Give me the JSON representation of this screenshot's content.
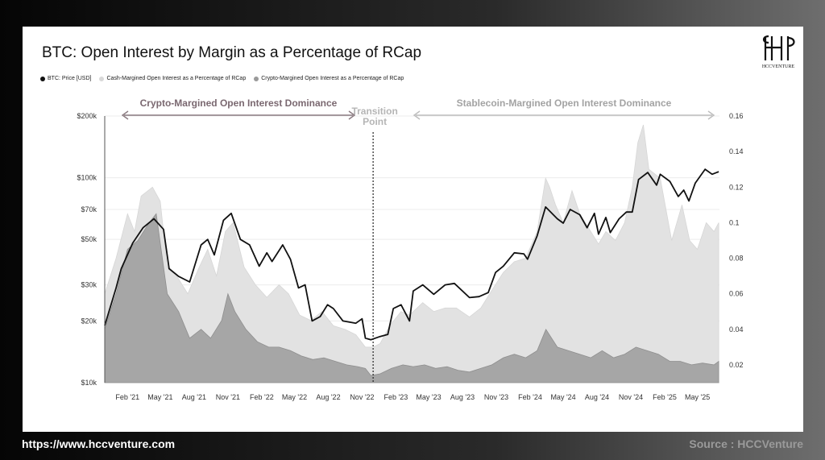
{
  "footer": {
    "website": "https://www.hccventure.com",
    "source": "Source : HCCVenture"
  },
  "logo": {
    "text": "HCCVENTURE"
  },
  "colors": {
    "price": "#111111",
    "cash": "#e2e2e2",
    "crypto": "#a6a6a6",
    "arrow_left": "#8a7a80",
    "arrow_right": "#bdbdbd"
  },
  "chart_data": {
    "type": "area",
    "title": "BTC: Open Interest by Margin as a Percentage of RCap",
    "legend": [
      "BTC: Price [USD]",
      "Cash-Margined Open Interest as a Percentage of RCap",
      "Crypto-Margined Open Interest as a Percentage of RCap"
    ],
    "annotations": {
      "left": "Crypto-Margined Open Interest Dominance",
      "transition": [
        "Transition",
        "Point"
      ],
      "right": "Stablecoin-Margined Open Interest Dominance"
    },
    "x_ticks": [
      "Feb '21",
      "May '21",
      "Aug '21",
      "Nov '21",
      "Feb '22",
      "May '22",
      "Aug '22",
      "Nov '22",
      "Feb '23",
      "May '23",
      "Aug '23",
      "Nov '23",
      "Feb '24",
      "May '24",
      "Aug '24",
      "Nov '24",
      "Feb '25",
      "May '25"
    ],
    "x_range": [
      "2020-12-01",
      "2025-06-30"
    ],
    "y_left": {
      "scale": "log",
      "range": [
        10000,
        200000
      ],
      "ticks": [
        "$10k",
        "$20k",
        "$30k",
        "$50k",
        "$70k",
        "$100k",
        "$200k"
      ],
      "tick_values": [
        10000,
        20000,
        30000,
        50000,
        70000,
        100000,
        200000
      ]
    },
    "y_right": {
      "scale": "linear",
      "range": [
        0.01,
        0.16
      ],
      "ticks": [
        "0.02",
        "0.04",
        "0.06",
        "0.08",
        "0.1",
        "0.12",
        "0.14",
        "0.16"
      ],
      "tick_values": [
        0.02,
        0.04,
        0.06,
        0.08,
        0.1,
        0.12,
        0.14,
        0.16
      ]
    },
    "transition_date": "2022-12-01",
    "series": [
      {
        "name": "BTC: Price [USD]",
        "axis": "left",
        "x": [
          "2020-12-01",
          "2021-01-01",
          "2021-01-15",
          "2021-02-15",
          "2021-03-15",
          "2021-04-14",
          "2021-05-10",
          "2021-05-25",
          "2021-06-20",
          "2021-07-20",
          "2021-08-20",
          "2021-09-07",
          "2021-09-25",
          "2021-10-20",
          "2021-11-10",
          "2021-12-05",
          "2021-12-30",
          "2022-01-25",
          "2022-02-15",
          "2022-03-01",
          "2022-03-30",
          "2022-04-20",
          "2022-05-12",
          "2022-05-30",
          "2022-06-18",
          "2022-07-10",
          "2022-07-30",
          "2022-08-15",
          "2022-09-10",
          "2022-10-15",
          "2022-11-01",
          "2022-11-10",
          "2022-11-25",
          "2022-12-20",
          "2023-01-10",
          "2023-01-25",
          "2023-02-15",
          "2023-03-10",
          "2023-03-20",
          "2023-04-15",
          "2023-05-15",
          "2023-06-15",
          "2023-07-10",
          "2023-08-20",
          "2023-09-15",
          "2023-10-10",
          "2023-10-30",
          "2023-11-20",
          "2023-12-20",
          "2024-01-15",
          "2024-01-25",
          "2024-02-20",
          "2024-03-14",
          "2024-04-15",
          "2024-05-01",
          "2024-05-20",
          "2024-06-15",
          "2024-07-05",
          "2024-07-25",
          "2024-08-05",
          "2024-08-25",
          "2024-09-06",
          "2024-09-30",
          "2024-10-20",
          "2024-11-05",
          "2024-11-22",
          "2024-12-17",
          "2025-01-10",
          "2025-01-20",
          "2025-02-15",
          "2025-03-10",
          "2025-03-25",
          "2025-04-08",
          "2025-04-25",
          "2025-05-22",
          "2025-06-10",
          "2025-06-28"
        ],
        "values": [
          19000,
          29000,
          36000,
          48000,
          57000,
          63000,
          56000,
          36000,
          33000,
          31000,
          47000,
          50000,
          42000,
          62000,
          67000,
          50000,
          47000,
          37000,
          43000,
          39000,
          47000,
          40000,
          29000,
          30000,
          20000,
          21000,
          24000,
          23000,
          20000,
          19500,
          20500,
          16500,
          16200,
          16800,
          17200,
          23000,
          24000,
          20000,
          28000,
          30000,
          27000,
          30000,
          30500,
          26000,
          26300,
          27500,
          34500,
          37000,
          43000,
          42500,
          40000,
          52000,
          72000,
          63000,
          60000,
          70000,
          66000,
          57000,
          67000,
          53000,
          64000,
          54000,
          63000,
          68000,
          68000,
          98000,
          106000,
          92000,
          104000,
          96000,
          81000,
          87000,
          77000,
          94000,
          110000,
          104000,
          107000
        ]
      },
      {
        "name": "Cash-Margined Open Interest as a Percentage of RCap",
        "axis": "right",
        "x": [
          "2020-12-01",
          "2021-01-01",
          "2021-02-01",
          "2021-02-20",
          "2021-03-10",
          "2021-04-10",
          "2021-05-01",
          "2021-05-20",
          "2021-06-15",
          "2021-07-15",
          "2021-08-15",
          "2021-09-07",
          "2021-10-01",
          "2021-10-25",
          "2021-11-15",
          "2021-12-15",
          "2022-01-15",
          "2022-02-15",
          "2022-03-20",
          "2022-04-15",
          "2022-05-15",
          "2022-06-15",
          "2022-07-15",
          "2022-08-15",
          "2022-09-15",
          "2022-10-15",
          "2022-11-10",
          "2022-12-01",
          "2022-12-20",
          "2023-01-15",
          "2023-02-15",
          "2023-03-10",
          "2023-04-15",
          "2023-05-15",
          "2023-06-15",
          "2023-07-15",
          "2023-08-20",
          "2023-09-20",
          "2023-10-20",
          "2023-11-20",
          "2023-12-20",
          "2024-01-20",
          "2024-02-20",
          "2024-03-14",
          "2024-03-25",
          "2024-04-10",
          "2024-05-01",
          "2024-05-25",
          "2024-06-15",
          "2024-07-15",
          "2024-08-05",
          "2024-08-25",
          "2024-09-20",
          "2024-10-15",
          "2024-11-05",
          "2024-11-20",
          "2024-12-05",
          "2024-12-20",
          "2025-01-20",
          "2025-02-20",
          "2025-03-20",
          "2025-04-10",
          "2025-05-01",
          "2025-05-25",
          "2025-06-15",
          "2025-06-28"
        ],
        "values": [
          0.06,
          0.08,
          0.105,
          0.095,
          0.115,
          0.12,
          0.112,
          0.075,
          0.07,
          0.06,
          0.075,
          0.085,
          0.07,
          0.095,
          0.1,
          0.075,
          0.065,
          0.058,
          0.065,
          0.06,
          0.048,
          0.045,
          0.05,
          0.042,
          0.04,
          0.037,
          0.03,
          0.03,
          0.032,
          0.042,
          0.05,
          0.048,
          0.055,
          0.05,
          0.052,
          0.052,
          0.047,
          0.052,
          0.062,
          0.072,
          0.078,
          0.08,
          0.095,
          0.125,
          0.12,
          0.11,
          0.1,
          0.118,
          0.105,
          0.095,
          0.088,
          0.095,
          0.09,
          0.1,
          0.12,
          0.145,
          0.155,
          0.13,
          0.125,
          0.09,
          0.11,
          0.09,
          0.085,
          0.1,
          0.095,
          0.1
        ]
      },
      {
        "name": "Crypto-Margined Open Interest as a Percentage of RCap",
        "axis": "right",
        "x": [
          "2020-12-01",
          "2021-01-01",
          "2021-02-01",
          "2021-03-01",
          "2021-04-01",
          "2021-04-20",
          "2021-05-20",
          "2021-06-20",
          "2021-07-20",
          "2021-08-20",
          "2021-09-15",
          "2021-10-15",
          "2021-11-01",
          "2021-11-20",
          "2021-12-20",
          "2022-01-20",
          "2022-02-20",
          "2022-03-20",
          "2022-04-20",
          "2022-05-20",
          "2022-06-20",
          "2022-07-20",
          "2022-08-20",
          "2022-09-20",
          "2022-10-20",
          "2022-11-10",
          "2022-11-25",
          "2022-12-20",
          "2023-01-20",
          "2023-02-20",
          "2023-03-20",
          "2023-04-20",
          "2023-05-20",
          "2023-06-20",
          "2023-07-20",
          "2023-08-20",
          "2023-09-20",
          "2023-10-20",
          "2023-11-20",
          "2023-12-20",
          "2024-01-20",
          "2024-02-20",
          "2024-03-15",
          "2024-04-15",
          "2024-05-15",
          "2024-06-15",
          "2024-07-15",
          "2024-08-15",
          "2024-09-15",
          "2024-10-15",
          "2024-11-15",
          "2024-12-15",
          "2025-01-15",
          "2025-02-15",
          "2025-03-15",
          "2025-04-15",
          "2025-05-15",
          "2025-06-15",
          "2025-06-28"
        ],
        "values": [
          0.04,
          0.06,
          0.085,
          0.09,
          0.1,
          0.105,
          0.06,
          0.05,
          0.035,
          0.04,
          0.035,
          0.045,
          0.06,
          0.05,
          0.04,
          0.033,
          0.03,
          0.03,
          0.028,
          0.025,
          0.023,
          0.024,
          0.022,
          0.02,
          0.019,
          0.018,
          0.014,
          0.015,
          0.018,
          0.02,
          0.019,
          0.02,
          0.018,
          0.019,
          0.017,
          0.016,
          0.018,
          0.02,
          0.024,
          0.026,
          0.024,
          0.028,
          0.04,
          0.03,
          0.028,
          0.026,
          0.024,
          0.028,
          0.024,
          0.026,
          0.03,
          0.028,
          0.026,
          0.022,
          0.022,
          0.02,
          0.021,
          0.02,
          0.022
        ]
      }
    ]
  }
}
